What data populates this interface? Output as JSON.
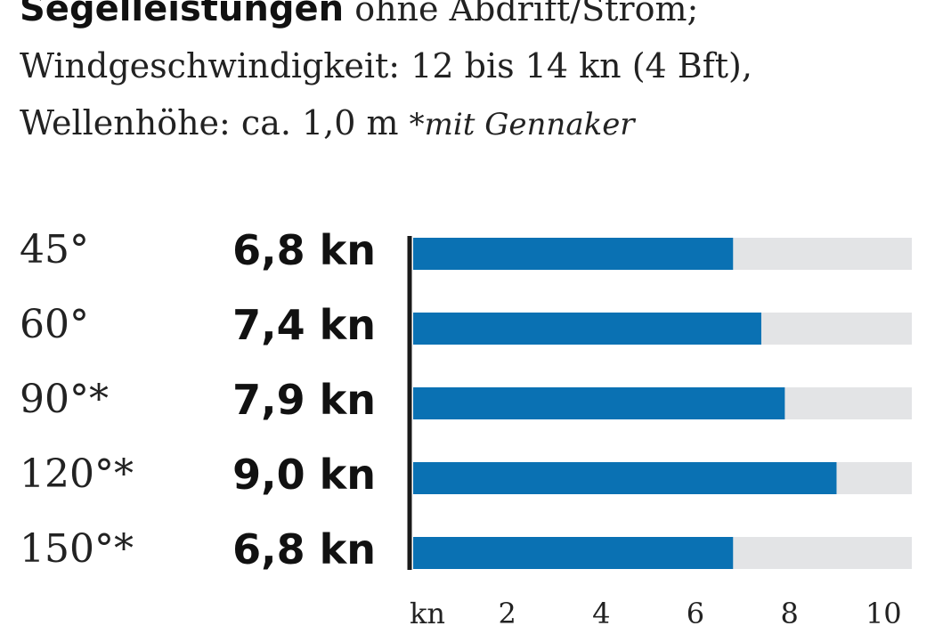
{
  "header": {
    "title": "Segelleistungen",
    "subtitle_rest": "ohne Abdrift/Strom;",
    "line2": "Windgeschwindigkeit: 12 bis 14 kn (4 Bft),",
    "line3": "Wellenhöhe: ca. 1,0 m",
    "footnote": "*mit Gennaker"
  },
  "chart_data": {
    "type": "bar",
    "orientation": "horizontal",
    "categories": [
      "45°",
      "60°",
      "90°*",
      "120°*",
      "150°*"
    ],
    "values": [
      6.8,
      7.4,
      7.9,
      9.0,
      6.8
    ],
    "value_labels": [
      "6,8 kn",
      "7,4 kn",
      "7,9 kn",
      "9,0 kn",
      "6,8 kn"
    ],
    "xlim": [
      0,
      10.6
    ],
    "x_ticks": [
      2,
      4,
      6,
      8,
      10
    ],
    "x_unit_label": "kn",
    "bar_color": "#0a71b3",
    "track_color": "#e3e4e6",
    "axis_color": "#1a1a1a"
  }
}
